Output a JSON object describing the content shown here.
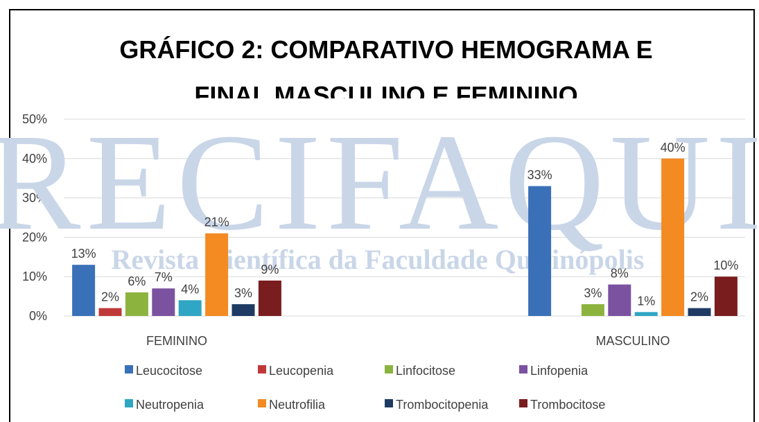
{
  "chart_data": {
    "type": "bar",
    "title": [
      "GRÁFICO 2: COMPARATIVO HEMOGRAMA E",
      "FINAL MASCULINO E FEMININO"
    ],
    "watermark": [
      "RECIFAQUI",
      "Revista Científica da Faculdade Quirinópolis"
    ],
    "categories": [
      "FEMININO",
      "MASCULINO"
    ],
    "series": [
      {
        "name": "Leucocitose",
        "color": "#3a70b8",
        "values": [
          13,
          33
        ],
        "value_labels": [
          "13%",
          "33%"
        ]
      },
      {
        "name": "Leucopenia",
        "color": "#c0393a",
        "values": [
          2,
          null
        ],
        "value_labels": [
          "2%",
          null
        ]
      },
      {
        "name": "Linfocitose",
        "color": "#8db33f",
        "values": [
          6,
          3
        ],
        "value_labels": [
          "6%",
          "3%"
        ]
      },
      {
        "name": "Linfopenia",
        "color": "#7b52a0",
        "values": [
          7,
          8
        ],
        "value_labels": [
          "7%",
          "8%"
        ]
      },
      {
        "name": "Neutropenia",
        "color": "#2fa6c3",
        "values": [
          4,
          1
        ],
        "value_labels": [
          "4%",
          "1%"
        ]
      },
      {
        "name": "Neutrofilia",
        "color": "#f38b22",
        "values": [
          21,
          40
        ],
        "value_labels": [
          "21%",
          "40%"
        ]
      },
      {
        "name": "Trombocitopenia",
        "color": "#1f3b63",
        "values": [
          3,
          2
        ],
        "value_labels": [
          "3%",
          "2%"
        ]
      },
      {
        "name": "Trombocitose",
        "color": "#7a1d1f",
        "values": [
          9,
          10
        ],
        "value_labels": [
          "9%",
          "10%"
        ]
      }
    ],
    "ylim": [
      0,
      50
    ],
    "yticks": [
      {
        "value": 0,
        "label": "0%"
      },
      {
        "value": 10,
        "label": "10%"
      },
      {
        "value": 20,
        "label": "20%"
      },
      {
        "value": 30,
        "label": "30%"
      },
      {
        "value": 40,
        "label": "40%"
      },
      {
        "value": 50,
        "label": "50%"
      }
    ],
    "grid": true,
    "legend": "bottom"
  }
}
